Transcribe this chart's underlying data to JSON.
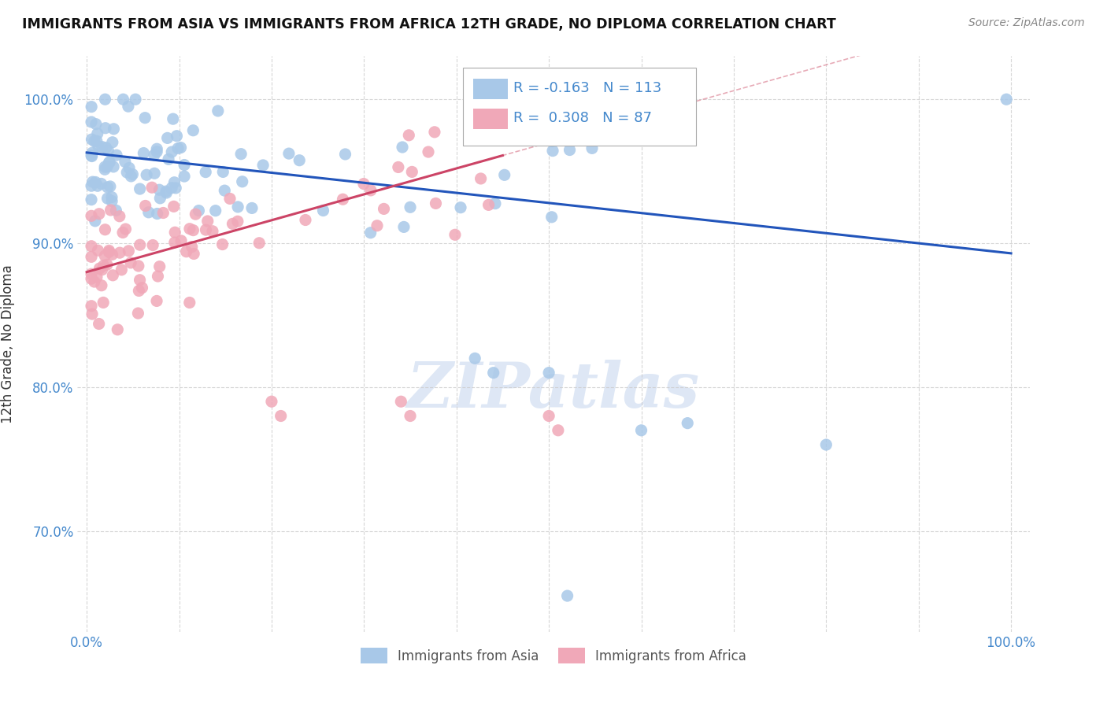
{
  "title": "IMMIGRANTS FROM ASIA VS IMMIGRANTS FROM AFRICA 12TH GRADE, NO DIPLOMA CORRELATION CHART",
  "source": "Source: ZipAtlas.com",
  "ylabel": "12th Grade, No Diploma",
  "blue_label": "Immigrants from Asia",
  "pink_label": "Immigrants from Africa",
  "R_blue": -0.163,
  "N_blue": 113,
  "R_pink": 0.308,
  "N_pink": 87,
  "blue_color": "#a8c8e8",
  "pink_color": "#f0a8b8",
  "blue_line_color": "#2255bb",
  "pink_line_color": "#cc4466",
  "blue_dot_edge": "none",
  "pink_dot_edge": "none",
  "xlim": [
    0.0,
    1.0
  ],
  "ylim": [
    0.63,
    1.03
  ],
  "xtick_vals": [
    0.0,
    0.1,
    0.2,
    0.3,
    0.4,
    0.5,
    0.6,
    0.7,
    0.8,
    0.9,
    1.0
  ],
  "ytick_vals": [
    0.7,
    0.8,
    0.9,
    1.0
  ],
  "xticklabels": [
    "0.0%",
    "",
    "",
    "",
    "",
    "",
    "",
    "",
    "",
    "",
    "100.0%"
  ],
  "yticklabels": [
    "70.0%",
    "80.0%",
    "90.0%",
    "100.0%"
  ],
  "tick_color": "#4488cc",
  "watermark": "ZIPatlas",
  "grid_color": "#cccccc",
  "blue_intercept": 0.963,
  "blue_slope": -0.07,
  "pink_intercept": 0.88,
  "pink_slope": 0.18
}
